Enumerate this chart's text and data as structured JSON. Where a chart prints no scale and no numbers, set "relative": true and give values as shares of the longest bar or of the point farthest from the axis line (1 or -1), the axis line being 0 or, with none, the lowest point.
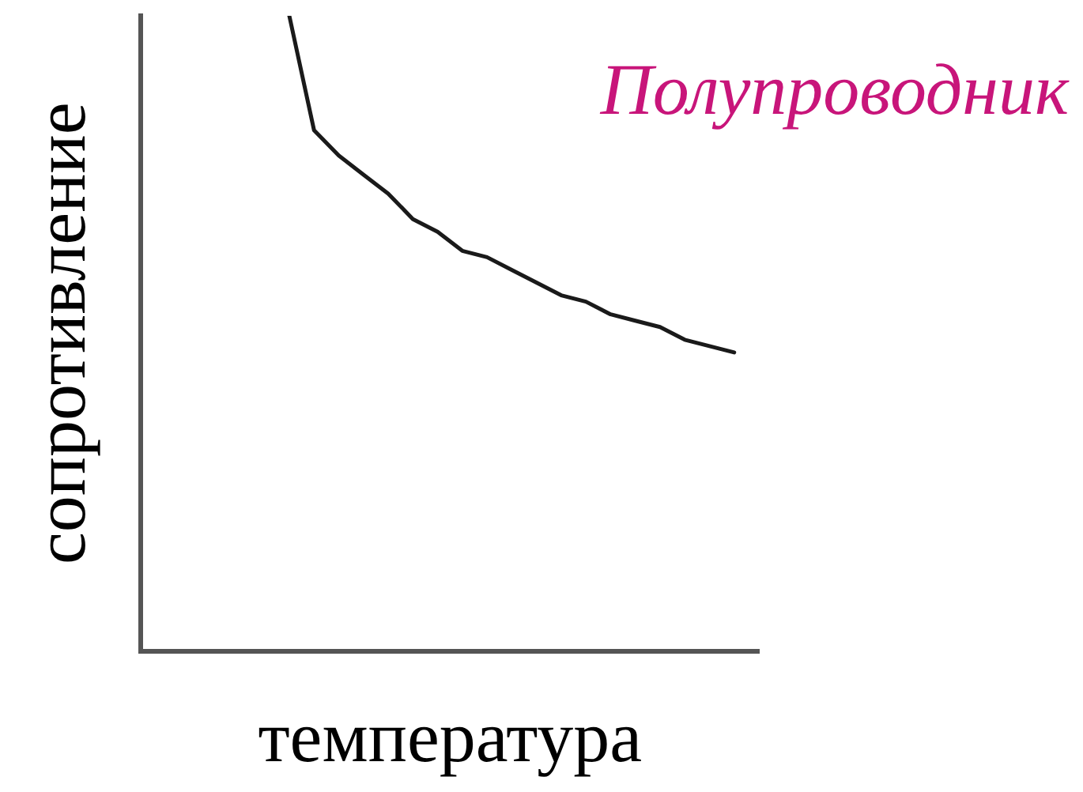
{
  "chart_data": {
    "type": "line",
    "relative": true,
    "xlabel": "температура",
    "ylabel": "сопротивление",
    "annotations": [
      "Полупроводник"
    ],
    "categories": [
      null,
      null,
      null,
      null,
      null,
      null,
      null,
      null,
      null,
      null,
      null,
      null,
      null,
      null,
      null,
      null,
      null,
      null,
      null,
      null,
      null,
      null,
      null,
      null,
      null,
      null
    ],
    "series": [
      {
        "color": "#1a1a1a",
        "values": [
          null,
          null,
          null,
          null,
          null,
          null,
          1,
          0.82,
          0.78,
          0.75,
          0.72,
          0.68,
          0.66,
          0.63,
          0.62,
          0.6,
          0.58,
          0.56,
          0.55,
          0.53,
          0.52,
          0.51,
          0.49,
          0.48,
          0.47,
          null
        ]
      }
    ],
    "marker": "none",
    "line_style": "solid",
    "grid": false,
    "legend": false,
    "tick_labels": false
  }
}
